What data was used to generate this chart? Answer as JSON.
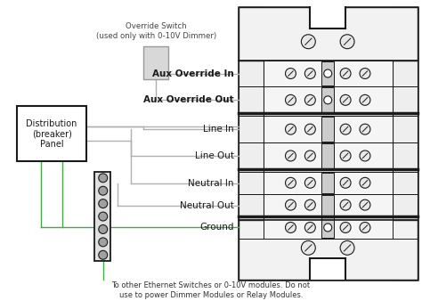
{
  "bg_color": "#ffffff",
  "line_color": "#1a1a1a",
  "gray_wire": "#b0b0b0",
  "green_wire": "#44aa44",
  "label_color": "#1a1a1a",
  "bottom_text": "To other Ethernet Switches or 0-10V modules. Do not\nuse to power Dimmer Modules or Relay Modules.",
  "override_text": "Override Switch\n(used only with 0-10V Dimmer)",
  "distribution_text": "Distribution\n(breaker)\nPanel",
  "figsize": [
    4.74,
    3.38
  ],
  "dpi": 100
}
